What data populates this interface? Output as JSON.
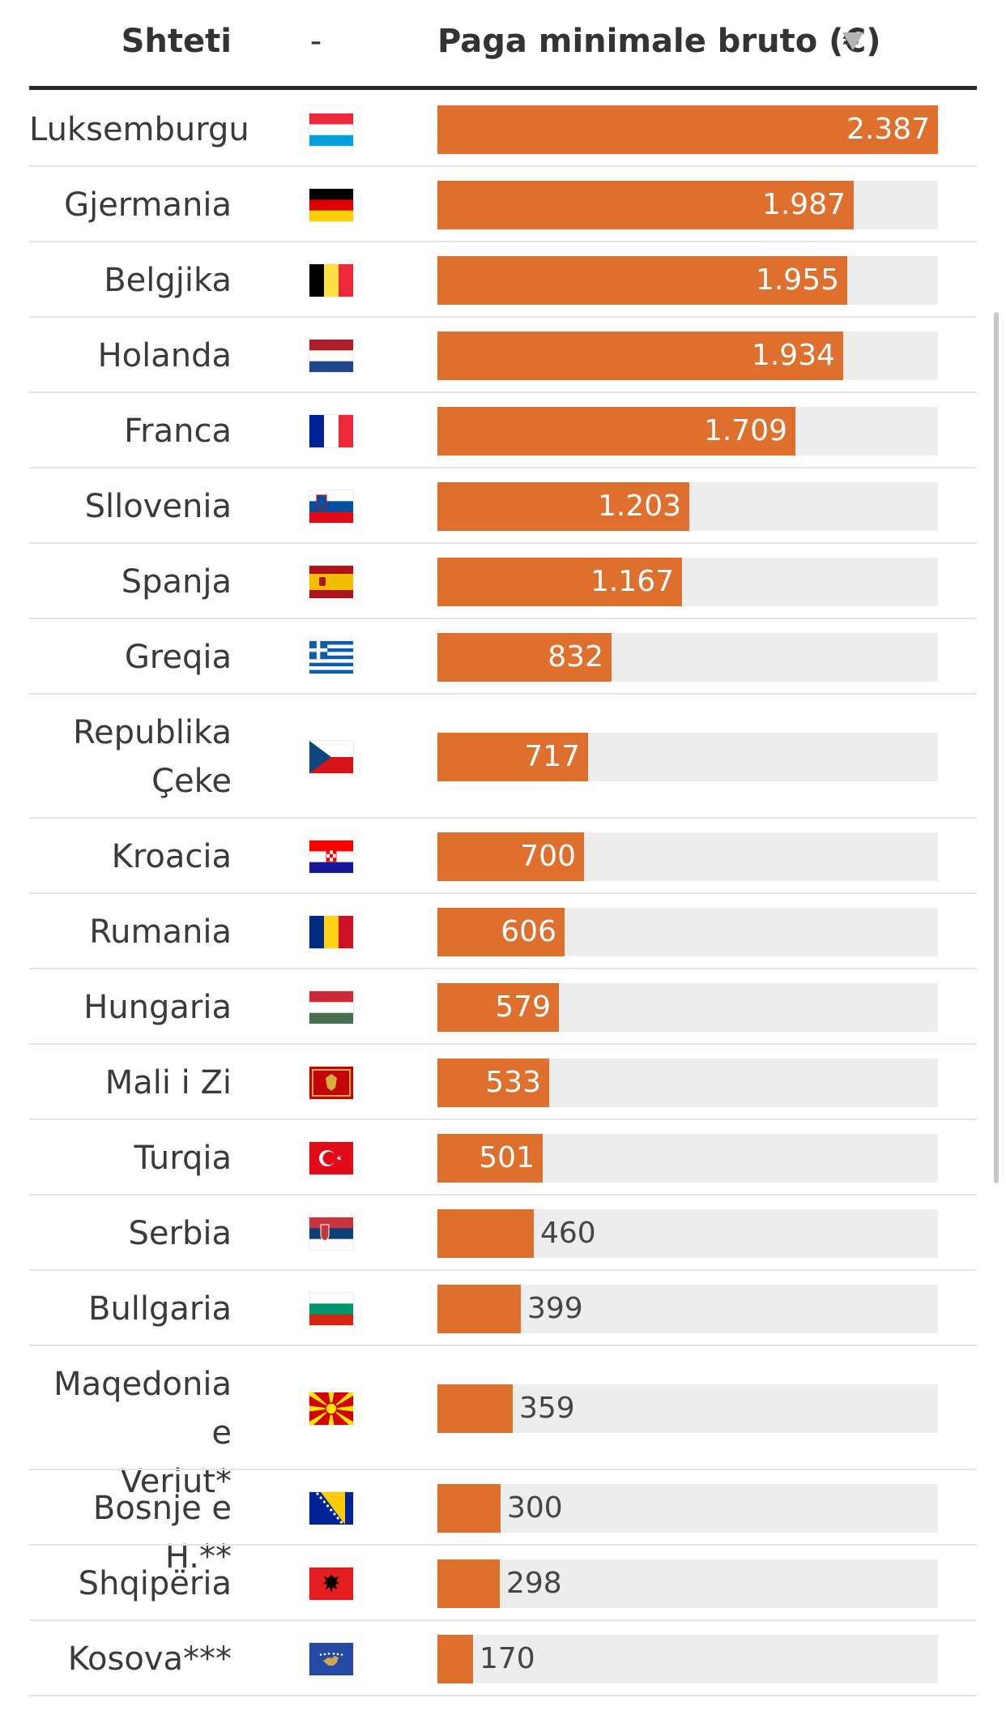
{
  "header": {
    "country_label": "Shteti",
    "flag_label": "-",
    "value_label": "Paga minimale bruto (€)",
    "sort_icon": "sort-down-icon"
  },
  "chart_data": {
    "type": "bar",
    "orientation": "horizontal",
    "xlim": [
      0,
      2387
    ],
    "grid": false,
    "categories": [
      "Luksemburgu",
      "Gjermania",
      "Belgjika",
      "Holanda",
      "Franca",
      "Sllovenia",
      "Spanja",
      "Greqia",
      "Republika Çeke",
      "Kroacia",
      "Rumania",
      "Hungaria",
      "Mali i Zi",
      "Turqia",
      "Serbia",
      "Bullgaria",
      "Maqedonia e Veriut*",
      "Bosnje e H.**",
      "Shqipëria",
      "Kosova***"
    ],
    "values": [
      2387,
      1987,
      1955,
      1934,
      1709,
      1203,
      1167,
      832,
      717,
      700,
      606,
      579,
      533,
      501,
      460,
      399,
      359,
      300,
      298,
      170
    ],
    "value_labels": [
      "2.387",
      "1.987",
      "1.955",
      "1.934",
      "1.709",
      "1.203",
      "1.167",
      "832",
      "717",
      "700",
      "606",
      "579",
      "533",
      "501",
      "460",
      "399",
      "359",
      "300",
      "298",
      "170"
    ],
    "flags": [
      "luxembourg-flag-icon",
      "germany-flag-icon",
      "belgium-flag-icon",
      "netherlands-flag-icon",
      "france-flag-icon",
      "slovenia-flag-icon",
      "spain-flag-icon",
      "greece-flag-icon",
      "czech-republic-flag-icon",
      "croatia-flag-icon",
      "romania-flag-icon",
      "hungary-flag-icon",
      "montenegro-flag-icon",
      "turkey-flag-icon",
      "serbia-flag-icon",
      "bulgaria-flag-icon",
      "north-macedonia-flag-icon",
      "bosnia-flag-icon",
      "albania-flag-icon",
      "kosovo-flag-icon"
    ]
  },
  "colors": {
    "bar": "#df6f2c",
    "track": "#ededed",
    "text": "#3a3a3a",
    "value_inside": "#ffffff",
    "value_outside": "#444444",
    "rule": "#2a2a2a",
    "separator": "#e4e4e4"
  }
}
